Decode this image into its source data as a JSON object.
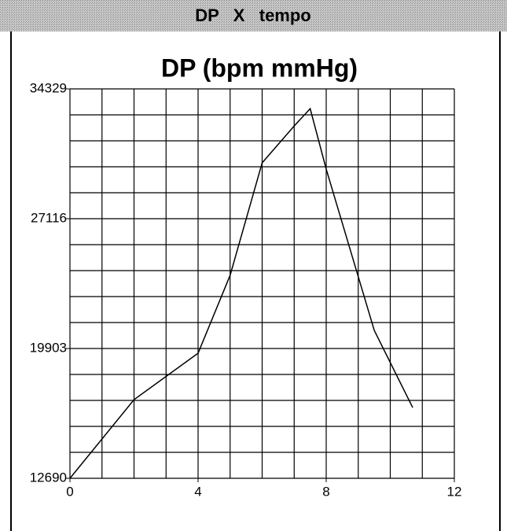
{
  "window": {
    "title": "DP   X   tempo"
  },
  "chart_data": {
    "type": "line",
    "title": "DP (bpm mmHg)",
    "x": [
      0,
      2,
      4,
      5,
      6,
      7,
      7.5,
      8,
      9.5,
      10.7
    ],
    "values": [
      12690,
      17060,
      19640,
      23970,
      30220,
      32270,
      33230,
      29870,
      20910,
      16620
    ],
    "color": "#000000",
    "xlim": [
      0,
      12
    ],
    "xticks": [
      0,
      4,
      8,
      12
    ],
    "ylim": [
      12690,
      34329
    ],
    "yticks": [
      12690,
      19903,
      27116,
      34329
    ],
    "xgrid": [
      0,
      1,
      2,
      3,
      4,
      5,
      6,
      7,
      8,
      9,
      10,
      11,
      12
    ],
    "ygrid": [
      12690,
      14132.6,
      15575.2,
      17017.8,
      18460.4,
      19903,
      21345.6,
      22788.2,
      24230.8,
      25673.4,
      27116,
      28558.6,
      30001.2,
      31443.8,
      32886.4,
      34329
    ],
    "grid": true
  }
}
